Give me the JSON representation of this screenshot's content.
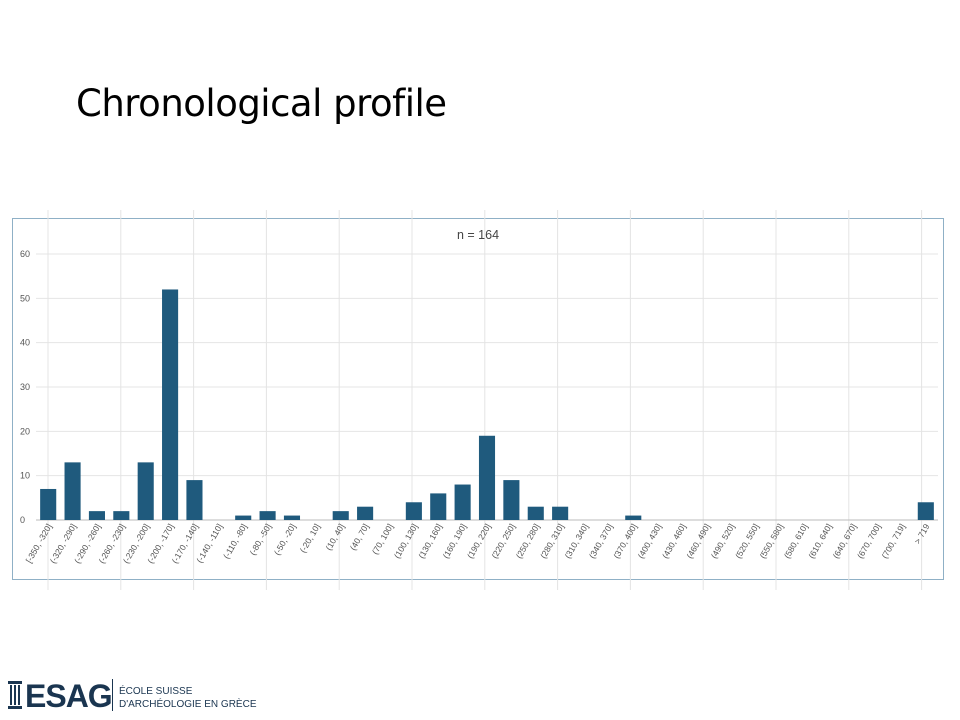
{
  "slide": {
    "title": "Chronological profile"
  },
  "logo": {
    "name": "ESAG",
    "line1": "ÉCOLE SUISSE",
    "line2": "D'ARCHÉOLOGIE EN GRÈCE"
  },
  "colors": {
    "bar": "#1f5a7d",
    "grid": "#e4e4e4",
    "frame": "#8fb0c6",
    "text": "#555555"
  },
  "chart_data": {
    "type": "bar",
    "title": "n = 164",
    "xlabel": "",
    "ylabel": "",
    "ylim": [
      0,
      60
    ],
    "yticks": [
      0,
      10,
      20,
      30,
      40,
      50,
      60
    ],
    "grid": true,
    "legend": "none",
    "categories": [
      "[-350, -320]",
      "(-320, -290]",
      "(-290, -260]",
      "(-260, -230]",
      "(-230, -200]",
      "(-200, -170]",
      "(-170, -140]",
      "(-140, -110]",
      "(-110, -80]",
      "(-80, -50]",
      "(-50, -20]",
      "(-20, 10]",
      "(10, 40]",
      "(40, 70]",
      "(70, 100]",
      "(100, 130]",
      "(130, 160]",
      "(160, 190]",
      "(190, 220]",
      "(220, 250]",
      "(250, 280]",
      "(280, 310]",
      "(310, 340]",
      "(340, 370]",
      "(370, 400]",
      "(400, 430]",
      "(430, 460]",
      "(460, 490]",
      "(490, 520]",
      "(520, 550]",
      "(550, 580]",
      "(580, 610]",
      "(610, 640]",
      "(640, 670]",
      "(670, 700]",
      "(700, 719]",
      "> 719"
    ],
    "values": [
      7,
      13,
      2,
      2,
      13,
      52,
      9,
      0,
      1,
      2,
      1,
      0,
      2,
      3,
      0,
      4,
      6,
      8,
      19,
      9,
      3,
      3,
      0,
      0,
      1,
      0,
      0,
      0,
      0,
      0,
      0,
      0,
      0,
      0,
      0,
      0,
      4
    ]
  }
}
